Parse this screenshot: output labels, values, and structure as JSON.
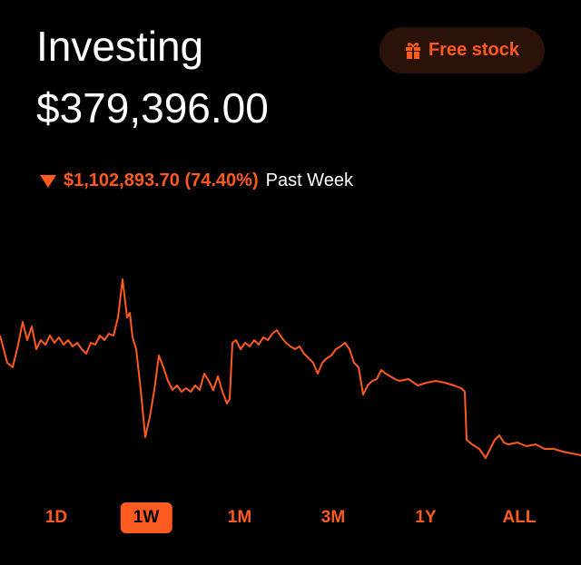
{
  "header": {
    "title": "Investing",
    "balance": "$379,396.00"
  },
  "free_stock": {
    "label": "Free stock"
  },
  "change": {
    "amount": "$1,102,893.70 (74.40%)",
    "period": "Past Week"
  },
  "tabs": [
    {
      "label": "1D",
      "selected": false
    },
    {
      "label": "1W",
      "selected": true
    },
    {
      "label": "1M",
      "selected": false
    },
    {
      "label": "3M",
      "selected": false
    },
    {
      "label": "1Y",
      "selected": false
    },
    {
      "label": "ALL",
      "selected": false
    }
  ]
}
